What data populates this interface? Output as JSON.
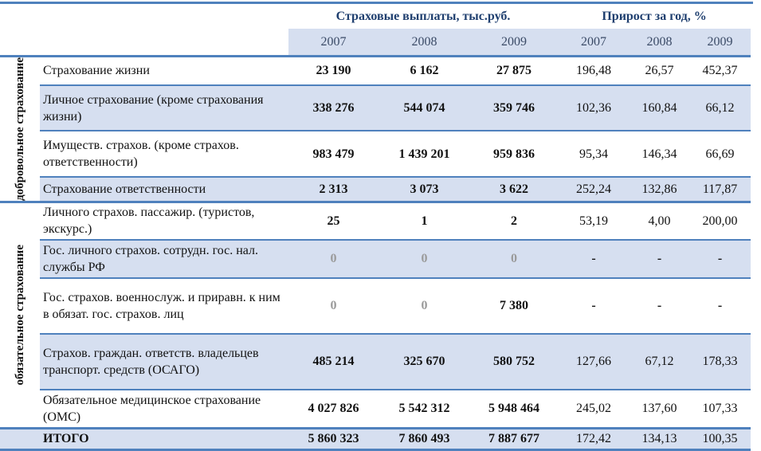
{
  "header": {
    "payments": "Страховые выплаты, тыс.руб.",
    "growth": "Прирост за год, %",
    "years": [
      "2007",
      "2008",
      "2009",
      "2007",
      "2008",
      "2009"
    ]
  },
  "groups": {
    "voluntary": "добровольное страхование",
    "mandatory": "обязательное страхование"
  },
  "rows": [
    {
      "label": "Страхование жизни",
      "v": [
        "23 190",
        "6 162",
        "27 875"
      ],
      "p": [
        "196,48",
        "26,57",
        "452,37"
      ]
    },
    {
      "label": "Личное страхование (кроме страхования жизни)",
      "v": [
        "338 276",
        "544 074",
        "359 746"
      ],
      "p": [
        "102,36",
        "160,84",
        "66,12"
      ]
    },
    {
      "label": "Имуществ. страхов. (кроме страхов. ответственности)",
      "v": [
        "983 479",
        "1 439 201",
        "959 836"
      ],
      "p": [
        "95,34",
        "146,34",
        "66,69"
      ]
    },
    {
      "label": "Страхование ответственности",
      "v": [
        "2 313",
        "3 073",
        "3 622"
      ],
      "p": [
        "252,24",
        "132,86",
        "117,87"
      ]
    },
    {
      "label": "Личного страхов. пассажир. (туристов, экскурс.)",
      "v": [
        "25",
        "1",
        "2"
      ],
      "p": [
        "53,19",
        "4,00",
        "200,00"
      ]
    },
    {
      "label": "Гос. личного страхов. сотрудн. гос. нал. службы РФ",
      "v": [
        "0",
        "0",
        "0"
      ],
      "p": [
        "-",
        "-",
        "-"
      ]
    },
    {
      "label": "Гос. страхов. военнослуж. и приравн. к ним в обязат. гос. страхов. лиц",
      "v": [
        "0",
        "0",
        "7 380"
      ],
      "p": [
        "-",
        "-",
        "-"
      ]
    },
    {
      "label": "Страхов. граждан. ответств. владельцев транспорт. средств (ОСАГО)",
      "v": [
        "485 214",
        "325 670",
        "580 752"
      ],
      "p": [
        "127,66",
        "67,12",
        "178,33"
      ]
    },
    {
      "label": "Обязательное медицинское страхование (ОМС)",
      "v": [
        "4 027 826",
        "5 542 312",
        "5 948 464"
      ],
      "p": [
        "245,02",
        "137,60",
        "107,33"
      ]
    }
  ],
  "total": {
    "label": "ИТОГО",
    "v": [
      "5 860 323",
      "7 860 493",
      "7 887 677"
    ],
    "p": [
      "172,42",
      "134,13",
      "100,35"
    ]
  }
}
